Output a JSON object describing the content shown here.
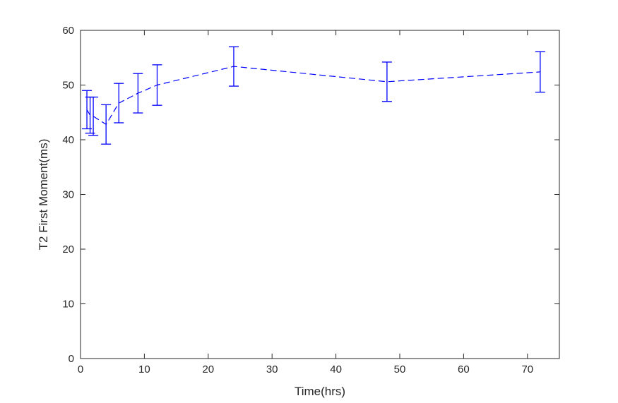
{
  "chart_data": {
    "type": "line",
    "title": "",
    "xlabel": "Time(hrs)",
    "ylabel": "T2 First Moment(ms)",
    "xlim": [
      0,
      75
    ],
    "ylim": [
      0,
      60
    ],
    "xticks": [
      0,
      10,
      20,
      30,
      40,
      50,
      60,
      70
    ],
    "yticks": [
      0,
      10,
      20,
      30,
      40,
      50,
      60
    ],
    "xtick_labels": [
      "0",
      "10",
      "20",
      "30",
      "40",
      "50",
      "60",
      "70"
    ],
    "ytick_labels": [
      "0",
      "10",
      "20",
      "30",
      "40",
      "50",
      "60"
    ],
    "grid": false,
    "box": true,
    "series": [
      {
        "line_style": "dashed",
        "color": "#0000ff",
        "error_bars": true,
        "x": [
          1,
          1.5,
          2,
          4,
          6,
          9,
          12,
          24,
          48,
          72
        ],
        "y": [
          45.5,
          44.5,
          44.3,
          42.8,
          46.7,
          48.5,
          50.0,
          53.4,
          50.6,
          52.4
        ],
        "err": [
          3.5,
          3.3,
          3.5,
          3.6,
          3.6,
          3.6,
          3.7,
          3.6,
          3.6,
          3.7
        ]
      }
    ]
  }
}
